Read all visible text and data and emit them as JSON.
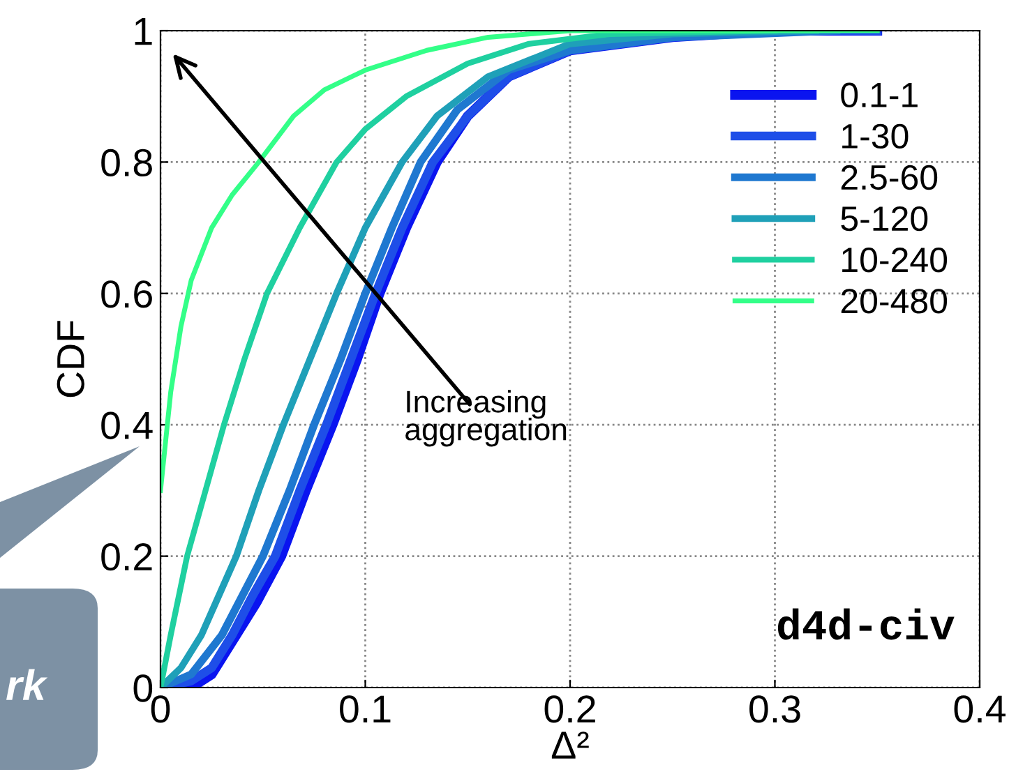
{
  "chart_data": {
    "type": "line",
    "xlabel": "Δ²",
    "ylabel": "CDF",
    "xlim": [
      0,
      0.4
    ],
    "ylim": [
      0,
      1
    ],
    "xticks": [
      0,
      0.1,
      0.2,
      0.3,
      0.4
    ],
    "yticks": [
      0,
      0.2,
      0.4,
      0.6,
      0.8,
      1
    ],
    "grid": true,
    "legend": "top right",
    "line_style": "solid",
    "marker": "none",
    "series": [
      {
        "name": "0.1-1",
        "color": "#0a14f0",
        "x": [
          0,
          0.015,
          0.025,
          0.035,
          0.047,
          0.059,
          0.071,
          0.084,
          0.096,
          0.107,
          0.12,
          0.135,
          0.15,
          0.17,
          0.2,
          0.25,
          0.3,
          0.35
        ],
        "values": [
          0,
          0.0,
          0.02,
          0.07,
          0.13,
          0.2,
          0.3,
          0.4,
          0.5,
          0.6,
          0.7,
          0.8,
          0.87,
          0.93,
          0.97,
          0.99,
          1.0,
          1.0
        ]
      },
      {
        "name": "1-30",
        "color": "#1e4ee8",
        "x": [
          0,
          0.015,
          0.025,
          0.035,
          0.045,
          0.056,
          0.068,
          0.081,
          0.093,
          0.105,
          0.118,
          0.133,
          0.15,
          0.17,
          0.2,
          0.25,
          0.3,
          0.35
        ],
        "values": [
          0,
          0.01,
          0.03,
          0.08,
          0.14,
          0.2,
          0.3,
          0.4,
          0.5,
          0.6,
          0.7,
          0.8,
          0.87,
          0.93,
          0.97,
          0.99,
          1.0,
          1.0
        ]
      },
      {
        "name": "2.5-60",
        "color": "#1f78d0",
        "x": [
          0,
          0.015,
          0.03,
          0.05,
          0.063,
          0.075,
          0.088,
          0.1,
          0.113,
          0.127,
          0.145,
          0.17,
          0.2,
          0.25,
          0.33
        ],
        "values": [
          0,
          0.02,
          0.08,
          0.2,
          0.3,
          0.4,
          0.5,
          0.6,
          0.7,
          0.8,
          0.88,
          0.94,
          0.97,
          0.99,
          1.0
        ]
      },
      {
        "name": "5-120",
        "color": "#1fa0b8",
        "x": [
          0,
          0.01,
          0.02,
          0.037,
          0.048,
          0.06,
          0.073,
          0.086,
          0.1,
          0.118,
          0.135,
          0.16,
          0.2,
          0.25,
          0.32
        ],
        "values": [
          0,
          0.03,
          0.08,
          0.2,
          0.3,
          0.4,
          0.5,
          0.6,
          0.7,
          0.8,
          0.87,
          0.93,
          0.98,
          0.995,
          1.0
        ]
      },
      {
        "name": "10-240",
        "color": "#1fd0a0",
        "x": [
          0,
          0.005,
          0.013,
          0.022,
          0.031,
          0.041,
          0.052,
          0.068,
          0.086,
          0.1,
          0.12,
          0.15,
          0.18,
          0.22,
          0.3
        ],
        "values": [
          0,
          0.08,
          0.2,
          0.3,
          0.4,
          0.5,
          0.6,
          0.7,
          0.8,
          0.85,
          0.9,
          0.95,
          0.98,
          0.995,
          1.0
        ]
      },
      {
        "name": "20-480",
        "color": "#33ff88",
        "x": [
          0,
          0.005,
          0.01,
          0.015,
          0.025,
          0.035,
          0.048,
          0.065,
          0.08,
          0.1,
          0.13,
          0.16,
          0.2,
          0.35
        ],
        "values": [
          0.3,
          0.45,
          0.55,
          0.62,
          0.7,
          0.75,
          0.8,
          0.87,
          0.91,
          0.94,
          0.97,
          0.99,
          1.0,
          1.0
        ]
      }
    ],
    "annotations": [
      "Increasing\naggregation",
      "d4d-civ",
      "rk"
    ]
  }
}
